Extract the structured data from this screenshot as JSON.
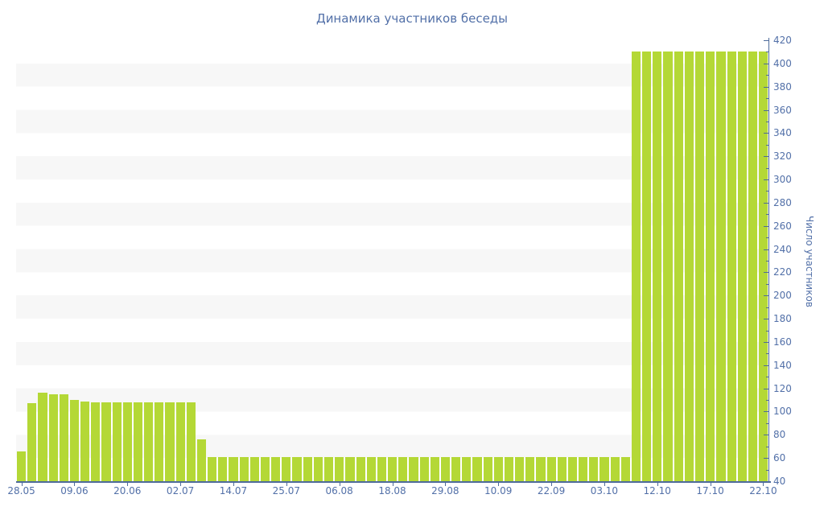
{
  "chart_data": {
    "type": "bar",
    "title": "Динамика участников беседы",
    "ylabel": "Число участников",
    "xlabel": "",
    "ylim": [
      40,
      420
    ],
    "ytick_step": 20,
    "y_minor_step": 10,
    "grid": "alternating horizontal bands every 20 units, no gridlines",
    "legend": "none",
    "y_axis_side": "right",
    "colors": {
      "bar": "#b4d836",
      "text": "#5270a8",
      "axis": "#4e6b9a",
      "band": "#f7f7f7",
      "background": "#ffffff"
    },
    "x_tick_labels": [
      "28.05",
      "09.06",
      "20.06",
      "02.07",
      "14.07",
      "25.07",
      "06.08",
      "18.08",
      "29.08",
      "10.09",
      "22.09",
      "03.10",
      "12.10",
      "17.10",
      "22.10"
    ],
    "x_tick_every": 5,
    "values": [
      66,
      107,
      116,
      115,
      115,
      110,
      109,
      108,
      108,
      108,
      108,
      108,
      108,
      108,
      108,
      108,
      108,
      76,
      61,
      61,
      61,
      61,
      61,
      61,
      61,
      61,
      61,
      61,
      61,
      61,
      61,
      61,
      61,
      61,
      61,
      61,
      61,
      61,
      61,
      61,
      61,
      61,
      61,
      61,
      61,
      61,
      61,
      61,
      61,
      61,
      61,
      61,
      61,
      61,
      61,
      61,
      61,
      61,
      410,
      410,
      410,
      410,
      410,
      410,
      410,
      410,
      410,
      410,
      410,
      410,
      410
    ]
  }
}
